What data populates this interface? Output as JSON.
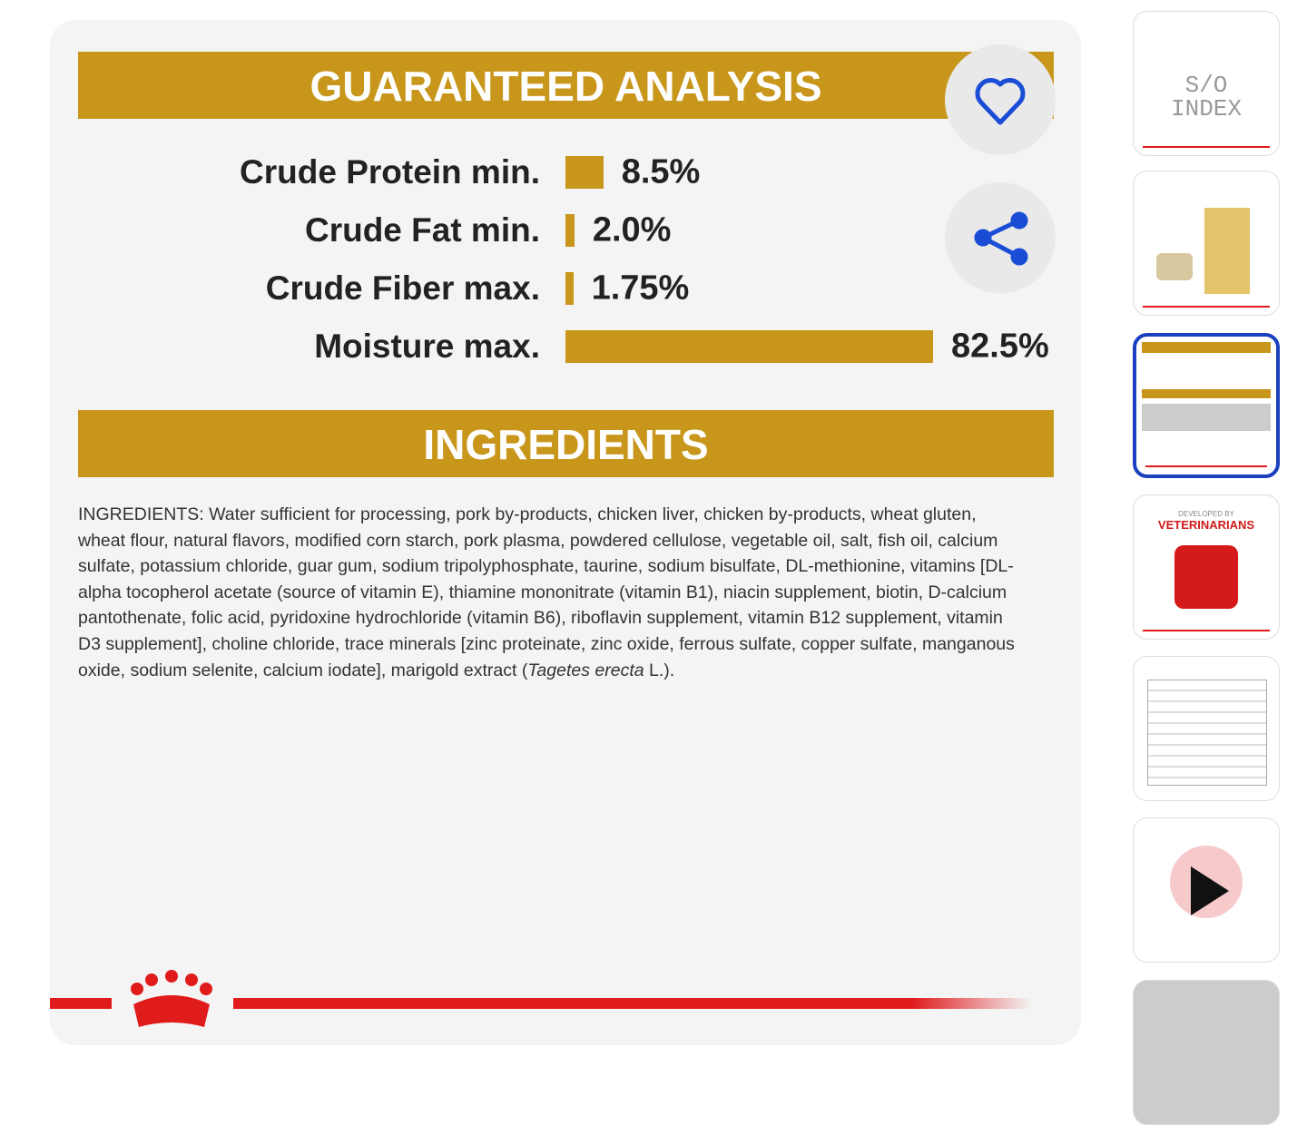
{
  "analysis": {
    "title": "GUARANTEED ANALYSIS",
    "rows": [
      {
        "label": "Crude Protein min.",
        "value": 8.5,
        "value_label": "8.5%"
      },
      {
        "label": "Crude Fat min.",
        "value": 2.0,
        "value_label": "2.0%"
      },
      {
        "label": "Crude Fiber max.",
        "value": 1.75,
        "value_label": "1.75%"
      },
      {
        "label": "Moisture max.",
        "value": 82.5,
        "value_label": "82.5%"
      }
    ]
  },
  "ingredients": {
    "title": "INGREDIENTS",
    "text_before": "INGREDIENTS: Water sufficient for processing, pork by-products, chicken liver, chicken by-products, wheat gluten, wheat flour, natural flavors, modified corn starch, pork plasma, powdered cellulose, vegetable oil, salt, fish oil, calcium sulfate, potassium chloride, guar gum, sodium tripolyphosphate, taurine, sodium bisulfate, DL-methionine, vitamins [DL-alpha tocopherol acetate (source of vitamin E), thiamine mononitrate (vitamin B1), niacin supplement, biotin, D-calcium pantothenate, folic acid, pyridoxine hydrochloride (vitamin B6), riboflavin supplement, vitamin B12 supplement, vitamin D3 supplement], choline chloride, trace minerals [zinc proteinate, zinc oxide, ferrous sulfate, copper sulfate, manganous oxide, sodium selenite, calcium iodate], marigold extract (",
    "italic": "Tagetes erecta",
    "text_after": " L.)."
  },
  "thumbnails": {
    "index": "S/O INDEX",
    "developed": "DEVELOPED BY",
    "vets": "VETERINARIANS"
  }
}
